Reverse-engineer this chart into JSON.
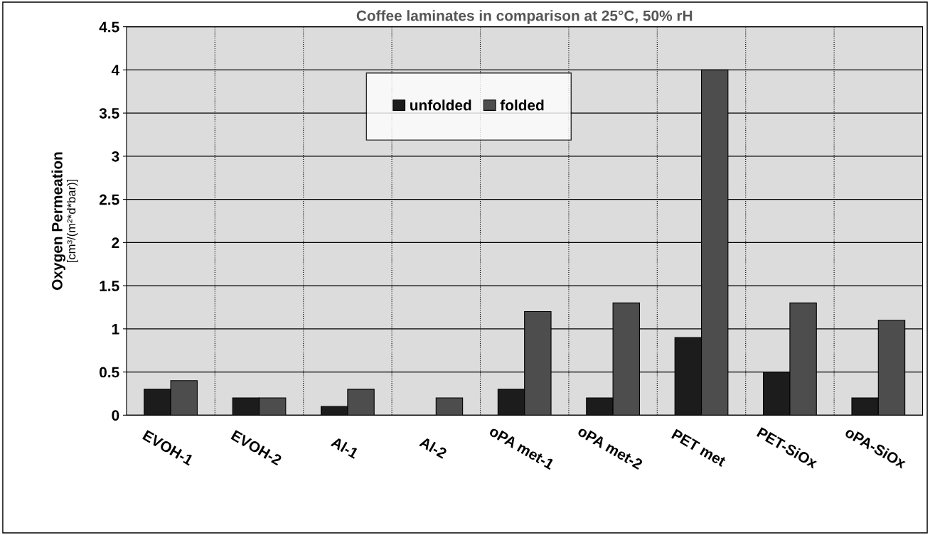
{
  "chart_data": {
    "type": "bar",
    "title": "Coffee laminates in comparison at 25°C, 50% rH",
    "ylabel": "Oxygen Permeation\n[cm³/(m²*d*bar)]",
    "categories": [
      "EVOH-1",
      "EVOH-2",
      "Al-1",
      "Al-2",
      "oPA met-1",
      "oPA met-2",
      "PET met",
      "PET-SiOx",
      "oPA-SiOx"
    ],
    "series": [
      {
        "name": "unfolded",
        "color": "#1c1c1c",
        "values": [
          0.3,
          0.2,
          0.1,
          null,
          0.3,
          0.2,
          0.9,
          0.5,
          0.2
        ]
      },
      {
        "name": "folded",
        "color": "#4d4d4d",
        "values": [
          0.4,
          0.2,
          0.3,
          0.2,
          1.2,
          1.3,
          4.0,
          1.3,
          1.1
        ]
      }
    ],
    "ylim": [
      0,
      4.5
    ],
    "yticks": [
      0,
      0.5,
      1,
      1.5,
      2,
      2.5,
      3,
      3.5,
      4,
      4.5
    ],
    "grid": true,
    "legend": "top"
  }
}
